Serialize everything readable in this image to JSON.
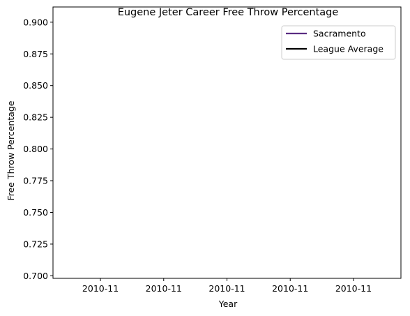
{
  "chart_data": {
    "type": "line",
    "title": "Eugene Jeter Career Free Throw Percentage",
    "xlabel": "Year",
    "ylabel": "Free Throw Percentage",
    "x_tick_labels": [
      "2010-11",
      "2010-11",
      "2010-11",
      "2010-11",
      "2010-11"
    ],
    "y_tick_labels": [
      "0.700",
      "0.725",
      "0.750",
      "0.775",
      "0.800",
      "0.825",
      "0.850",
      "0.875",
      "0.900"
    ],
    "y_ticks": [
      0.7,
      0.725,
      0.75,
      0.775,
      0.8,
      0.825,
      0.85,
      0.875,
      0.9
    ],
    "ylim": [
      0.698,
      0.912
    ],
    "grid": false,
    "legend_position": "top-right",
    "series": [
      {
        "name": "Sacramento",
        "color": "#5a2d82",
        "x": [],
        "values": []
      },
      {
        "name": "League Average",
        "color": "#000000",
        "x": [],
        "values": []
      }
    ]
  }
}
